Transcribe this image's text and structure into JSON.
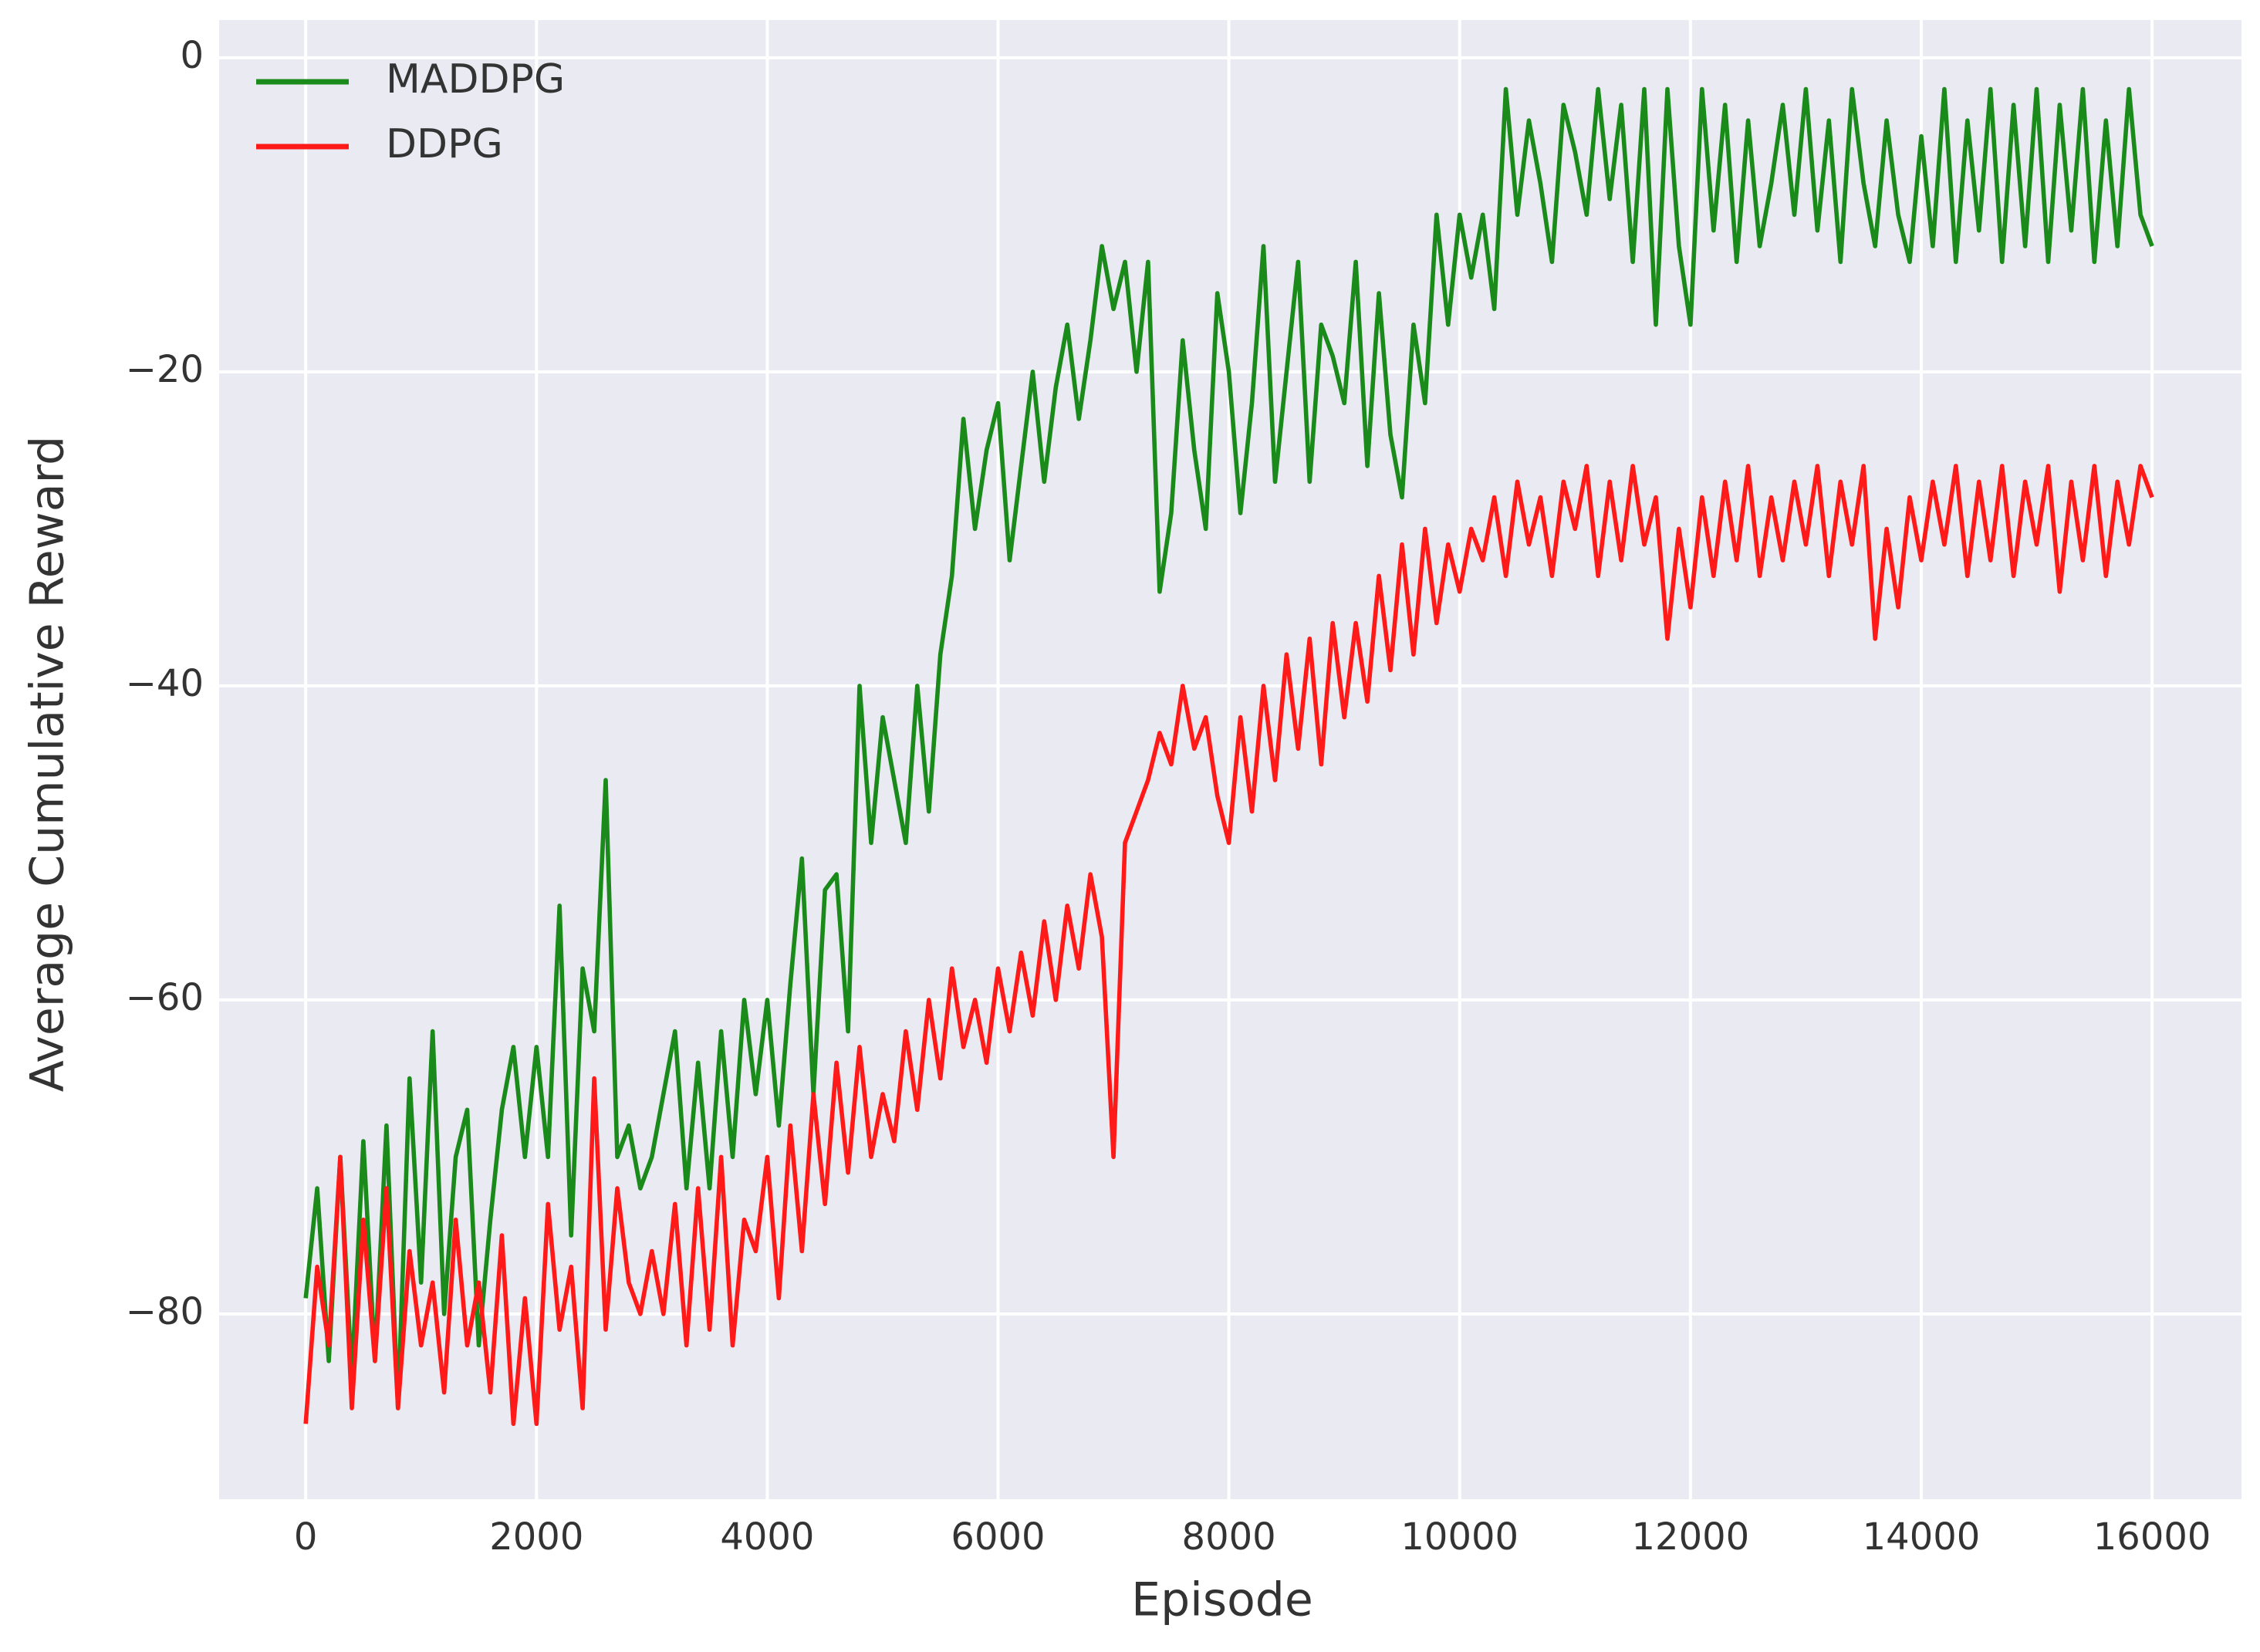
{
  "chart_data": {
    "type": "line",
    "xlabel": "Episode",
    "ylabel": "Average Cumulative Reward",
    "x": [
      0,
      100,
      200,
      300,
      400,
      500,
      600,
      700,
      800,
      900,
      1000,
      1100,
      1200,
      1300,
      1400,
      1500,
      1600,
      1700,
      1800,
      1900,
      2000,
      2100,
      2200,
      2300,
      2400,
      2500,
      2600,
      2700,
      2800,
      2900,
      3000,
      3100,
      3200,
      3300,
      3400,
      3500,
      3600,
      3700,
      3800,
      3900,
      4000,
      4100,
      4200,
      4300,
      4400,
      4500,
      4600,
      4700,
      4800,
      4900,
      5000,
      5100,
      5200,
      5300,
      5400,
      5500,
      5600,
      5700,
      5800,
      5900,
      6000,
      6100,
      6200,
      6300,
      6400,
      6500,
      6600,
      6700,
      6800,
      6900,
      7000,
      7100,
      7200,
      7300,
      7400,
      7500,
      7600,
      7700,
      7800,
      7900,
      8000,
      8100,
      8200,
      8300,
      8400,
      8500,
      8600,
      8700,
      8800,
      8900,
      9000,
      9100,
      9200,
      9300,
      9400,
      9500,
      9600,
      9700,
      9800,
      9900,
      10000,
      10100,
      10200,
      10300,
      10400,
      10500,
      10600,
      10700,
      10800,
      10900,
      11000,
      11100,
      11200,
      11300,
      11400,
      11500,
      11600,
      11700,
      11800,
      11900,
      12000,
      12100,
      12200,
      12300,
      12400,
      12500,
      12600,
      12700,
      12800,
      12900,
      13000,
      13100,
      13200,
      13300,
      13400,
      13500,
      13600,
      13700,
      13800,
      13900,
      14000,
      14100,
      14200,
      14300,
      14400,
      14500,
      14600,
      14700,
      14800,
      14900,
      15000,
      15100,
      15200,
      15300,
      15400,
      15500,
      15600,
      15700,
      15800,
      15900,
      16000
    ],
    "series": [
      {
        "name": "MADDPG",
        "color": "#1a8a1a",
        "values": [
          -79,
          -72,
          -83,
          -70,
          -84,
          -69,
          -83,
          -68,
          -86,
          -65,
          -78,
          -62,
          -80,
          -70,
          -67,
          -82,
          -74,
          -67,
          -63,
          -70,
          -63,
          -70,
          -54,
          -75,
          -58,
          -62,
          -46,
          -70,
          -68,
          -72,
          -70,
          -66,
          -62,
          -72,
          -64,
          -72,
          -62,
          -70,
          -60,
          -66,
          -60,
          -68,
          -59,
          -51,
          -66,
          -53,
          -52,
          -62,
          -40,
          -50,
          -42,
          -46,
          -50,
          -40,
          -48,
          -38,
          -33,
          -23,
          -30,
          -25,
          -22,
          -32,
          -26,
          -20,
          -27,
          -21,
          -17,
          -23,
          -18,
          -12,
          -16,
          -13,
          -20,
          -13,
          -34,
          -29,
          -18,
          -25,
          -30,
          -15,
          -20,
          -29,
          -22,
          -12,
          -27,
          -20,
          -13,
          -27,
          -17,
          -19,
          -22,
          -13,
          -26,
          -15,
          -24,
          -28,
          -17,
          -22,
          -10,
          -17,
          -10,
          -14,
          -10,
          -16,
          -2,
          -10,
          -4,
          -8,
          -13,
          -3,
          -6,
          -10,
          -2,
          -9,
          -3,
          -13,
          -2,
          -17,
          -2,
          -12,
          -17,
          -2,
          -11,
          -3,
          -13,
          -4,
          -12,
          -8,
          -3,
          -10,
          -2,
          -11,
          -4,
          -13,
          -2,
          -8,
          -12,
          -4,
          -10,
          -13,
          -5,
          -12,
          -2,
          -13,
          -4,
          -11,
          -2,
          -13,
          -3,
          -12,
          -2,
          -13,
          -3,
          -11,
          -2,
          -13,
          -4,
          -12,
          -2,
          -10,
          -12
        ]
      },
      {
        "name": "DDPG",
        "color": "#ff1a1a",
        "values": [
          -87,
          -77,
          -82,
          -70,
          -86,
          -74,
          -83,
          -72,
          -86,
          -76,
          -82,
          -78,
          -85,
          -74,
          -82,
          -78,
          -85,
          -75,
          -87,
          -79,
          -87,
          -73,
          -81,
          -77,
          -86,
          -65,
          -81,
          -72,
          -78,
          -80,
          -76,
          -80,
          -73,
          -82,
          -72,
          -81,
          -70,
          -82,
          -74,
          -76,
          -70,
          -79,
          -68,
          -76,
          -66,
          -73,
          -64,
          -71,
          -63,
          -70,
          -66,
          -69,
          -62,
          -67,
          -60,
          -65,
          -58,
          -63,
          -60,
          -64,
          -58,
          -62,
          -57,
          -61,
          -55,
          -60,
          -54,
          -58,
          -52,
          -56,
          -70,
          -50,
          -48,
          -46,
          -43,
          -45,
          -40,
          -44,
          -42,
          -47,
          -50,
          -42,
          -48,
          -40,
          -46,
          -38,
          -44,
          -37,
          -45,
          -36,
          -42,
          -36,
          -41,
          -33,
          -39,
          -31,
          -38,
          -30,
          -36,
          -31,
          -34,
          -30,
          -32,
          -28,
          -33,
          -27,
          -31,
          -28,
          -33,
          -27,
          -30,
          -26,
          -33,
          -27,
          -32,
          -26,
          -31,
          -28,
          -37,
          -30,
          -35,
          -28,
          -33,
          -27,
          -32,
          -26,
          -33,
          -28,
          -32,
          -27,
          -31,
          -26,
          -33,
          -27,
          -31,
          -26,
          -37,
          -30,
          -35,
          -28,
          -32,
          -27,
          -31,
          -26,
          -33,
          -27,
          -32,
          -26,
          -33,
          -27,
          -31,
          -26,
          -34,
          -27,
          -32,
          -26,
          -33,
          -27,
          -31,
          -26,
          -28
        ]
      }
    ],
    "xlim": [
      -750,
      16775
    ],
    "ylim": [
      -91.8,
      2.4
    ],
    "xticks": [
      0,
      2000,
      4000,
      6000,
      8000,
      10000,
      12000,
      14000,
      16000
    ],
    "yticks": [
      {
        "value": -80,
        "label": "−80"
      },
      {
        "value": -60,
        "label": "−60"
      },
      {
        "value": -40,
        "label": "−40"
      },
      {
        "value": -20,
        "label": "−20"
      },
      0
    ],
    "grid": true,
    "legend": "upper left"
  }
}
